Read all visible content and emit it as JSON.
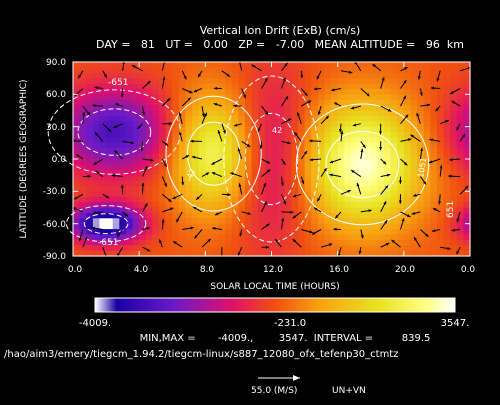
{
  "header": {
    "title": "Vertical Ion Drift (ExB) (cm/s)",
    "subtitle": "DAY =   81   UT =   0.00   ZP =   -7.00   MEAN ALTITUDE =   96  km"
  },
  "axes": {
    "ylabel": "LATITUDE (DEGREES GEOGRAPHIC)",
    "xlabel": "SOLAR LOCAL TIME (HOURS)",
    "xticks": [
      "0.0",
      "4.0",
      "8.0",
      "12.0",
      "16.0",
      "20.0",
      "0.0"
    ],
    "yticks": [
      "90.0",
      "60.0",
      "30.0",
      "0.0",
      "-30.0",
      "-60.0",
      "-90.0"
    ]
  },
  "colorbar": {
    "min_label": "-4009.",
    "mid_label": "-231.0",
    "max_label": "3547."
  },
  "stats_line": "MIN,MAX =       -4009.,        3547.  INTERVAL =         839.5",
  "path_line": "/hao/aim3/emery/tiegcm_1.94.2/tiegcm-linux/s887_12080_ofx_tefenp30_ctmtz",
  "reference_vector": {
    "label": "55.0 (M/S)",
    "caption": "UN+VN"
  },
  "contour_labels": {
    "top_left": "-651",
    "bottom_left": "-651",
    "right": "651",
    "center_a": "42",
    "center_b": "-42",
    "right_a": "1051"
  },
  "chart_data": {
    "type": "heatmap",
    "title": "Vertical Ion Drift (ExB) (cm/s)",
    "xlabel": "SOLAR LOCAL TIME (HOURS)",
    "ylabel": "LATITUDE (DEGREES GEOGRAPHIC)",
    "xlim": [
      0,
      24
    ],
    "ylim": [
      -90,
      90
    ],
    "x_ticks": [
      0,
      4,
      8,
      12,
      16,
      20,
      24
    ],
    "y_ticks": [
      90,
      60,
      30,
      0,
      -30,
      -60,
      -90
    ],
    "value_range": [
      -4009,
      3547
    ],
    "contour_interval": 839.5,
    "features": [
      {
        "type": "max",
        "x": 8.5,
        "y": 5,
        "sx": 1.8,
        "sy": 38,
        "value": 2900
      },
      {
        "type": "max",
        "x": 17.5,
        "y": -5,
        "sx": 2.5,
        "sy": 40,
        "value": 3547
      },
      {
        "type": "min",
        "x": 2.0,
        "y": -60,
        "sx": 1.5,
        "sy": 12,
        "value": -4009
      },
      {
        "type": "min",
        "x": 2.5,
        "y": 25,
        "sx": 2.5,
        "sy": 28,
        "value": -2600
      },
      {
        "type": "min",
        "x": 12.0,
        "y": 0,
        "sx": 1.8,
        "sy": 55,
        "value": -1400
      }
    ],
    "wind_vectors": "UN+VN",
    "reference_vector_ms": 55.0
  }
}
